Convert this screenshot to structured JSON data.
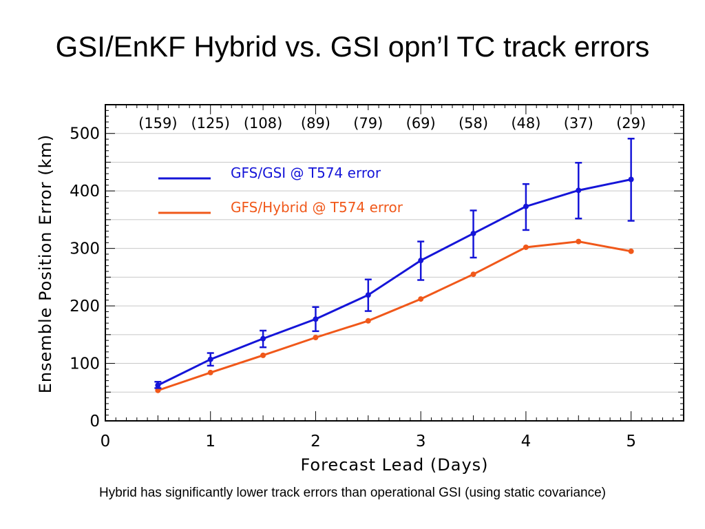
{
  "slide": {
    "title": "GSI/EnKF Hybrid vs. GSI opn’l TC track errors",
    "caption": "Hybrid has significantly lower track errors than operational GSI (using static covariance)"
  },
  "chart_data": {
    "type": "line",
    "xlabel": "Forecast Lead (Days)",
    "ylabel": "Ensemble Position Error (km)",
    "xlim": [
      0,
      5.5
    ],
    "ylim": [
      0,
      550
    ],
    "xticks": [
      0,
      1,
      2,
      3,
      4,
      5
    ],
    "yticks": [
      0,
      100,
      200,
      300,
      400,
      500
    ],
    "grid_y": [
      50,
      100,
      150,
      200,
      250,
      300,
      350,
      400,
      450,
      500
    ],
    "legend_position": "top-left",
    "x": [
      0.5,
      1.0,
      1.5,
      2.0,
      2.5,
      3.0,
      3.5,
      4.0,
      4.5,
      5.0
    ],
    "sample_counts": [
      "(159)",
      "(125)",
      "(108)",
      "(89)",
      "(79)",
      "(69)",
      "(58)",
      "(48)",
      "(37)",
      "(29)"
    ],
    "series": [
      {
        "name": "GFS/GSI @ T574 error",
        "color": "#1515d8",
        "values": [
          62,
          107,
          143,
          177,
          219,
          279,
          326,
          373,
          401,
          420
        ],
        "err_low": [
          57,
          96,
          128,
          156,
          191,
          245,
          284,
          332,
          352,
          348
        ],
        "err_high": [
          68,
          118,
          157,
          198,
          246,
          312,
          366,
          412,
          449,
          491
        ]
      },
      {
        "name": "GFS/Hybrid @ T574 error",
        "color": "#f0581a",
        "values": [
          53,
          84,
          114,
          145,
          174,
          212,
          255,
          302,
          312,
          295
        ]
      }
    ]
  }
}
